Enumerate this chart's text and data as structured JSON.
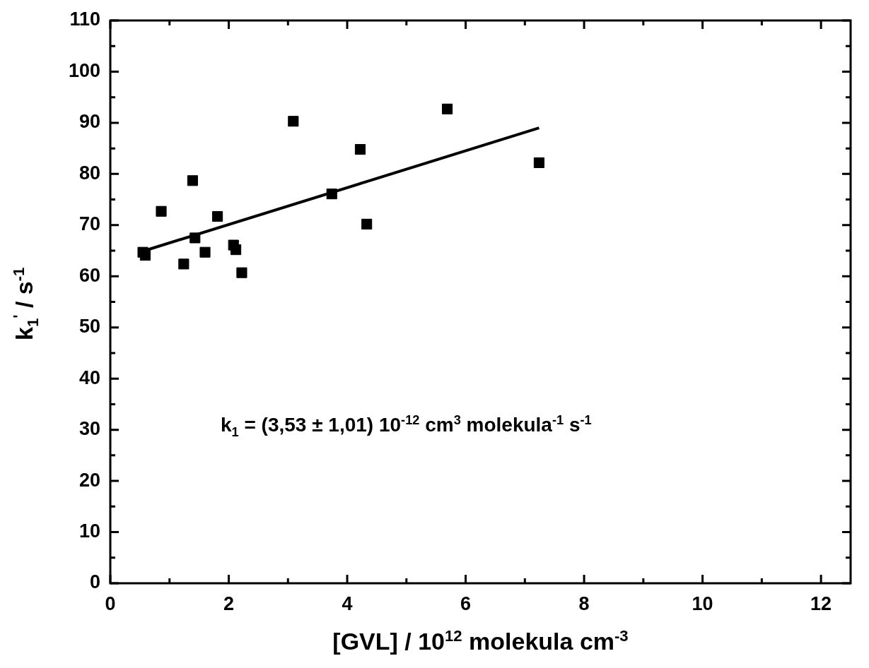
{
  "chart_data": {
    "type": "scatter",
    "xlabel": "[GVL] / 10$^{12}$ molekula cm$^{-3}$",
    "ylabel": "k$_{1}$$^{'}$ / s$^{-1}$",
    "annotations": [
      "k$_{1}$ = (3,53 ± 1,01) 10$^{-12}$ cm$^{3}$ molekula$^{-1}$ s$^{-1}$"
    ],
    "xlim": [
      0,
      12.5
    ],
    "ylim": [
      0,
      110
    ],
    "xticks": [
      0,
      {
        "value": 1,
        "label": null
      },
      2,
      {
        "value": 3,
        "label": null
      },
      4,
      {
        "value": 5,
        "label": null
      },
      6,
      {
        "value": 7,
        "label": null
      },
      8,
      {
        "value": 9,
        "label": null
      },
      10,
      {
        "value": 11,
        "label": null
      },
      12
    ],
    "yticks": [
      0,
      {
        "value": 5,
        "label": null
      },
      10,
      {
        "value": 15,
        "label": null
      },
      20,
      {
        "value": 25,
        "label": null
      },
      30,
      {
        "value": 35,
        "label": null
      },
      40,
      {
        "value": 45,
        "label": null
      },
      50,
      {
        "value": 55,
        "label": null
      },
      60,
      {
        "value": 65,
        "label": null
      },
      70,
      {
        "value": 75,
        "label": null
      },
      80,
      {
        "value": 85,
        "label": null
      },
      90,
      {
        "value": 95,
        "label": null
      },
      100,
      {
        "value": 105,
        "label": null
      },
      110
    ],
    "grid": false,
    "legend": false,
    "marker": "square",
    "series": [
      {
        "color": "#000000",
        "x": [
          0.55,
          0.59,
          0.86,
          1.39,
          1.43,
          1.24,
          1.6,
          1.81,
          2.08,
          2.12,
          2.22,
          3.09,
          3.74,
          4.22,
          4.33,
          5.69,
          7.24
        ],
        "values": [
          64.7,
          64.1,
          72.7,
          78.7,
          67.5,
          62.4,
          64.7,
          71.7,
          66.1,
          65.2,
          60.7,
          90.3,
          76.1,
          84.8,
          70.2,
          92.7,
          82.2
        ]
      },
      {
        "type": "line",
        "color": "#000000",
        "marker": "none",
        "line_style": "solid",
        "x": [
          0.55,
          7.24
        ],
        "values": [
          64.9,
          89.0
        ]
      }
    ]
  }
}
